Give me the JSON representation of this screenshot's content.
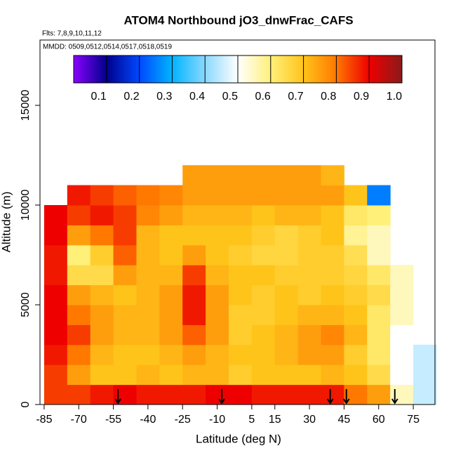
{
  "chart_data": {
    "type": "heatmap",
    "title": "ATOM4 Northbound jO3_dnwFrac_CAFS",
    "subtitle": "Flts: 7,8,9,10,11,12",
    "annotation": "MMDD: 0509,0512,0514,0517,0518,0519",
    "x_label": "Latitude (deg N)",
    "y_label": "Altitude (m)",
    "xlim": [
      -86.8,
      84.4
    ],
    "ylim": [
      0,
      18275
    ],
    "xticks": [
      -85,
      -70,
      -55,
      -40,
      -25,
      -10,
      5,
      15,
      30,
      45,
      60,
      75
    ],
    "yticks": [
      0,
      5000,
      10000,
      15000
    ],
    "x_edges": [
      -85,
      -75,
      -65,
      -55,
      -45,
      -35,
      -25,
      -15,
      -5,
      5,
      15,
      25,
      35,
      45,
      55,
      65,
      75,
      85
    ],
    "y_edges": [
      0,
      1000,
      2000,
      3000,
      4000,
      5000,
      6000,
      7000,
      8000,
      9000,
      10000,
      11000,
      12000
    ],
    "z": [
      [
        0.85,
        0.85,
        0.88,
        0.9,
        0.88,
        0.88,
        0.88,
        0.9,
        0.9,
        0.88,
        0.88,
        0.88,
        0.88,
        0.8,
        0.75,
        0.55,
        0.45
      ],
      [
        0.85,
        0.75,
        0.7,
        0.7,
        0.72,
        0.7,
        0.72,
        0.72,
        0.68,
        0.7,
        0.7,
        0.7,
        0.72,
        0.7,
        0.65,
        0.5,
        0.45
      ],
      [
        0.88,
        0.8,
        0.72,
        0.7,
        0.7,
        0.72,
        0.75,
        0.72,
        0.7,
        0.7,
        0.72,
        0.75,
        0.75,
        0.68,
        0.62,
        0.5,
        0.45
      ],
      [
        0.9,
        0.85,
        0.75,
        0.72,
        0.72,
        0.75,
        0.82,
        0.75,
        0.68,
        0.7,
        0.72,
        0.75,
        0.78,
        0.72,
        0.62,
        0.5,
        null
      ],
      [
        0.9,
        0.8,
        0.75,
        0.72,
        0.72,
        0.75,
        0.88,
        0.75,
        0.68,
        0.68,
        0.7,
        0.72,
        0.72,
        0.7,
        0.62,
        0.55,
        null
      ],
      [
        0.9,
        0.75,
        0.72,
        0.7,
        0.72,
        0.75,
        0.88,
        0.75,
        0.7,
        0.68,
        0.7,
        0.68,
        0.7,
        0.68,
        0.65,
        0.55,
        null
      ],
      [
        0.88,
        0.65,
        0.65,
        0.75,
        0.72,
        0.72,
        0.85,
        0.72,
        0.7,
        0.7,
        0.68,
        0.68,
        0.68,
        0.66,
        0.62,
        0.55,
        null
      ],
      [
        0.88,
        0.6,
        0.68,
        0.82,
        0.72,
        0.7,
        0.75,
        0.7,
        0.68,
        0.66,
        0.66,
        0.68,
        0.68,
        0.64,
        0.55,
        null,
        null
      ],
      [
        0.9,
        0.75,
        0.8,
        0.85,
        0.72,
        0.7,
        0.7,
        0.7,
        0.7,
        0.68,
        0.66,
        0.68,
        0.7,
        0.58,
        0.55,
        null,
        null
      ],
      [
        0.9,
        0.85,
        0.88,
        0.85,
        0.78,
        0.75,
        0.72,
        0.72,
        0.72,
        0.7,
        0.72,
        0.72,
        0.7,
        0.62,
        0.6,
        null,
        null
      ],
      [
        null,
        0.88,
        0.85,
        0.82,
        0.8,
        0.78,
        0.75,
        0.75,
        0.75,
        0.75,
        0.75,
        0.75,
        0.75,
        0.7,
        0.25,
        null,
        null
      ],
      [
        null,
        null,
        null,
        null,
        null,
        null,
        0.75,
        0.75,
        0.75,
        0.75,
        0.75,
        0.75,
        0.72,
        null,
        null,
        null,
        null
      ]
    ],
    "colorscale": [
      [
        0,
        "#8a00ff"
      ],
      [
        0.1,
        "#00008b"
      ],
      [
        0.2,
        "#0048ff"
      ],
      [
        0.3,
        "#00b4ff"
      ],
      [
        0.4,
        "#8ad8ff"
      ],
      [
        0.5,
        "#ffffff"
      ],
      [
        0.6,
        "#fff07a"
      ],
      [
        0.7,
        "#ffc41a"
      ],
      [
        0.8,
        "#ff7800"
      ],
      [
        0.9,
        "#ee0000"
      ],
      [
        1,
        "#8b1a1a"
      ]
    ],
    "colorbar_lim": [
      0,
      1
    ],
    "colorbar_ticks": [
      0.1,
      0.2,
      0.3,
      0.4,
      0.5,
      0.6,
      0.7,
      0.8,
      0.9,
      {
        "value": 1,
        "label": "1.0"
      }
    ],
    "arrow_lats": [
      -53,
      -8,
      39,
      46,
      67
    ]
  }
}
